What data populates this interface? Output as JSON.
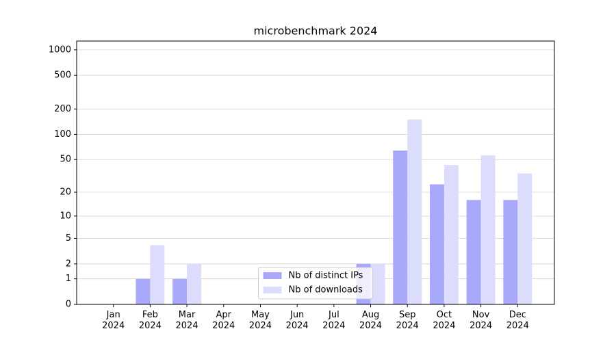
{
  "chart_data": {
    "type": "bar",
    "title": "microbenchmark 2024",
    "categories": [
      "Jan\n2024",
      "Feb\n2024",
      "Mar\n2024",
      "Apr\n2024",
      "May\n2024",
      "Jun\n2024",
      "Jul\n2024",
      "Aug\n2024",
      "Sep\n2024",
      "Oct\n2024",
      "Nov\n2024",
      "Dec\n2024"
    ],
    "series": [
      {
        "name": "Nb of distinct IPs",
        "color": "#a8a8fb",
        "values": [
          0,
          1,
          1,
          0,
          0,
          0,
          0,
          2,
          64,
          25,
          16,
          16
        ]
      },
      {
        "name": "Nb of downloads",
        "color": "#dcdcfc",
        "values": [
          0,
          4,
          2,
          0,
          0,
          0,
          0,
          2,
          150,
          43,
          56,
          34
        ]
      }
    ],
    "yscale": "symlog",
    "ylim": [
      0,
      1270
    ],
    "yticks": [
      0,
      1,
      2,
      5,
      10,
      20,
      50,
      100,
      200,
      500,
      1000
    ],
    "grid": true,
    "legend": "lower center"
  }
}
